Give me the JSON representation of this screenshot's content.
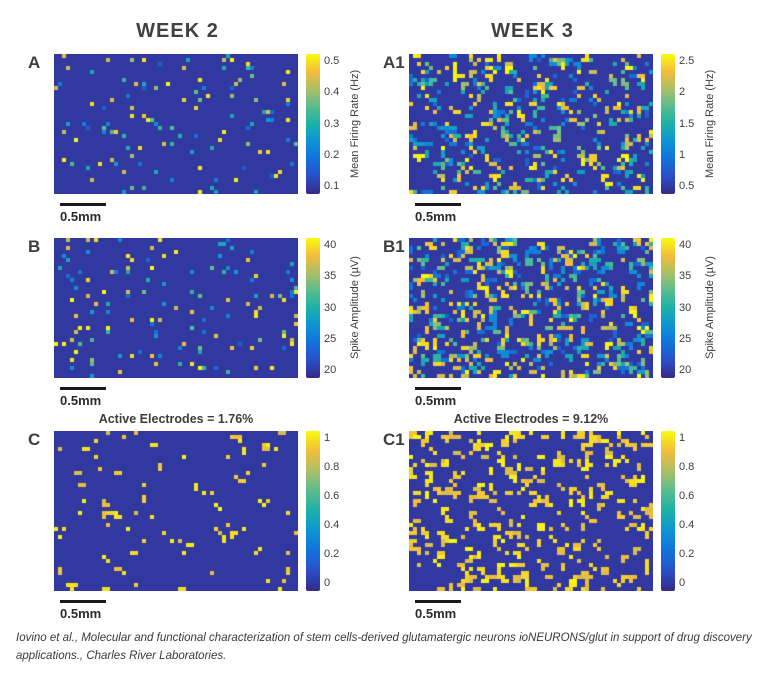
{
  "figure": {
    "columns": [
      {
        "title": "WEEK 2"
      },
      {
        "title": "WEEK 3"
      }
    ],
    "caption": "Iovino et al., Molecular and functional characterization of stem cells-derived glutamatergic neurons ioNEURONS/glut in support of drug discovery applications., Charles River Laboratories."
  },
  "colors": {
    "background": "#ffffff",
    "text": "#3d3d3d",
    "scale_bar": "#1a1a1a",
    "heatmap_base_value": 0.05,
    "colormap_stops": [
      {
        "t": 0.0,
        "color": "#352a87"
      },
      {
        "t": 0.13,
        "color": "#2a50c8"
      },
      {
        "t": 0.25,
        "color": "#1072dc"
      },
      {
        "t": 0.38,
        "color": "#0d95d4"
      },
      {
        "t": 0.5,
        "color": "#1bb1a7"
      },
      {
        "t": 0.63,
        "color": "#5cbd8c"
      },
      {
        "t": 0.75,
        "color": "#aabf66"
      },
      {
        "t": 0.87,
        "color": "#f2bc3c"
      },
      {
        "t": 1.0,
        "color": "#f9fb0e"
      }
    ]
  },
  "chart_data": [
    {
      "type": "heatmap",
      "panel": "A",
      "column": "WEEK 2",
      "metric": "Mean Firing Rate",
      "colorbar_label": "Mean Firing Rate (Hz)",
      "colorbar_ticks": [
        "0.5",
        "0.4",
        "0.3",
        "0.2",
        "0.1"
      ],
      "colorbar_range": [
        0.1,
        0.5
      ],
      "scale_bar": "0.5mm",
      "grid": {
        "rows": 35,
        "cols": 61
      },
      "active_fraction": 0.05,
      "value_profile": "mixed",
      "cluster": 0.0,
      "seed": 11
    },
    {
      "type": "heatmap",
      "panel": "A1",
      "column": "WEEK 3",
      "metric": "Mean Firing Rate",
      "colorbar_label": "Mean Firing Rate (Hz)",
      "colorbar_ticks": [
        "2.5",
        "2",
        "1.5",
        "1",
        "0.5"
      ],
      "colorbar_range": [
        0.5,
        2.5
      ],
      "scale_bar": "0.5mm",
      "grid": {
        "rows": 35,
        "cols": 61
      },
      "active_fraction": 0.16,
      "value_profile": "mixed",
      "cluster": 0.3,
      "seed": 23
    },
    {
      "type": "heatmap",
      "panel": "B",
      "column": "WEEK 2",
      "metric": "Spike Amplitude",
      "colorbar_label": "Spike Amplitude (µV)",
      "colorbar_ticks": [
        "40",
        "35",
        "30",
        "25",
        "20"
      ],
      "colorbar_range": [
        20,
        40
      ],
      "scale_bar": "0.5mm",
      "grid": {
        "rows": 35,
        "cols": 61
      },
      "active_fraction": 0.07,
      "value_profile": "mixed",
      "cluster": 0.0,
      "seed": 37
    },
    {
      "type": "heatmap",
      "panel": "B1",
      "column": "WEEK 3",
      "metric": "Spike Amplitude",
      "colorbar_label": "Spike Amplitude (µV)",
      "colorbar_ticks": [
        "40",
        "35",
        "30",
        "25",
        "20"
      ],
      "colorbar_range": [
        20,
        40
      ],
      "scale_bar": "0.5mm",
      "grid": {
        "rows": 35,
        "cols": 61
      },
      "active_fraction": 0.22,
      "value_profile": "mixed",
      "cluster": 0.3,
      "seed": 41
    },
    {
      "type": "heatmap",
      "panel": "C",
      "column": "WEEK 2",
      "metric": "Active Electrodes",
      "title": "Active Electrodes = 1.76%",
      "active_electrodes_percent": 1.76,
      "colorbar_label": "",
      "colorbar_ticks": [
        "1",
        "0.8",
        "0.6",
        "0.4",
        "0.2",
        "0"
      ],
      "colorbar_range": [
        0,
        1
      ],
      "scale_bar": "0.5mm",
      "grid": {
        "rows": 40,
        "cols": 61
      },
      "active_fraction": 0.035,
      "value_profile": "binary-high",
      "cluster": 0.15,
      "seed": 53
    },
    {
      "type": "heatmap",
      "panel": "C1",
      "column": "WEEK 3",
      "metric": "Active Electrodes",
      "title": "Active Electrodes = 9.12%",
      "active_electrodes_percent": 9.12,
      "colorbar_label": "",
      "colorbar_ticks": [
        "1",
        "0.8",
        "0.6",
        "0.4",
        "0.2",
        "0"
      ],
      "colorbar_range": [
        0,
        1
      ],
      "scale_bar": "0.5mm",
      "grid": {
        "rows": 40,
        "cols": 61
      },
      "active_fraction": 0.12,
      "value_profile": "binary-high",
      "cluster": 0.45,
      "seed": 67
    }
  ]
}
